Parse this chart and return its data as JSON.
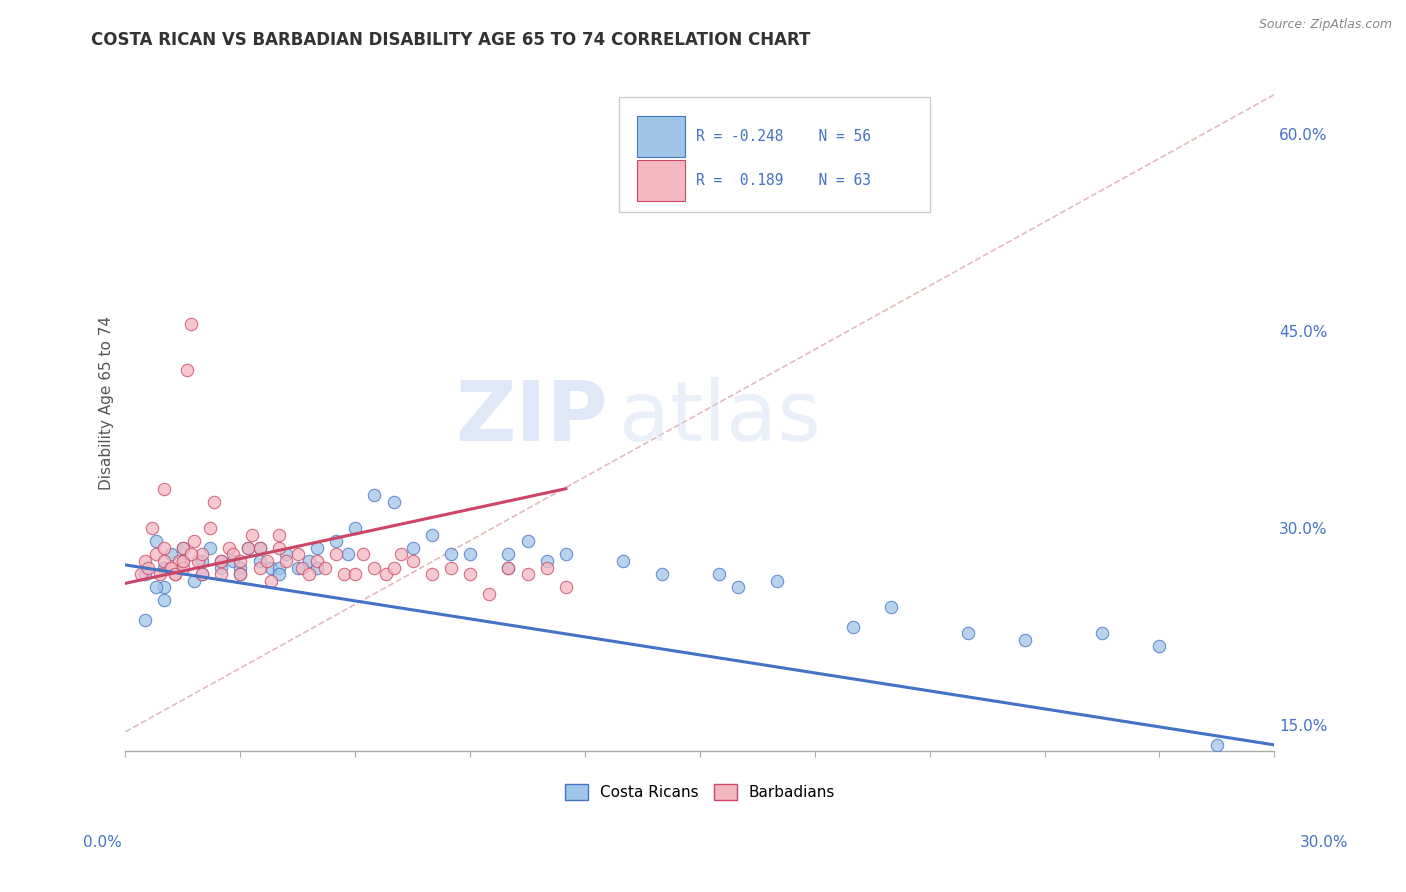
{
  "title": "COSTA RICAN VS BARBADIAN DISABILITY AGE 65 TO 74 CORRELATION CHART",
  "source": "Source: ZipAtlas.com",
  "ylabel": "Disability Age 65 to 74",
  "right_yticks": [
    "15.0%",
    "30.0%",
    "45.0%",
    "60.0%"
  ],
  "right_ytick_vals": [
    0.15,
    0.3,
    0.45,
    0.6
  ],
  "xmin": 0.0,
  "xmax": 0.3,
  "ymin": 0.13,
  "ymax": 0.66,
  "color_blue": "#9fc5e8",
  "color_pink": "#f4b8c1",
  "color_blue_dark": "#4472c4",
  "color_pink_dark": "#cc4466",
  "watermark_zip": "ZIP",
  "watermark_atlas": "atlas",
  "blue_scatter_x": [
    0.005,
    0.008,
    0.01,
    0.01,
    0.012,
    0.015,
    0.015,
    0.018,
    0.02,
    0.02,
    0.022,
    0.025,
    0.025,
    0.028,
    0.03,
    0.03,
    0.032,
    0.035,
    0.035,
    0.038,
    0.04,
    0.04,
    0.042,
    0.045,
    0.048,
    0.05,
    0.05,
    0.055,
    0.058,
    0.06,
    0.065,
    0.07,
    0.075,
    0.08,
    0.085,
    0.09,
    0.1,
    0.1,
    0.105,
    0.11,
    0.115,
    0.13,
    0.14,
    0.155,
    0.16,
    0.17,
    0.19,
    0.2,
    0.22,
    0.235,
    0.255,
    0.27,
    0.285,
    0.005,
    0.008,
    0.01
  ],
  "blue_scatter_y": [
    0.265,
    0.29,
    0.27,
    0.255,
    0.28,
    0.285,
    0.275,
    0.26,
    0.275,
    0.265,
    0.285,
    0.275,
    0.27,
    0.275,
    0.27,
    0.265,
    0.285,
    0.285,
    0.275,
    0.27,
    0.27,
    0.265,
    0.28,
    0.27,
    0.275,
    0.27,
    0.285,
    0.29,
    0.28,
    0.3,
    0.325,
    0.32,
    0.285,
    0.295,
    0.28,
    0.28,
    0.27,
    0.28,
    0.29,
    0.275,
    0.28,
    0.275,
    0.265,
    0.265,
    0.255,
    0.26,
    0.225,
    0.24,
    0.22,
    0.215,
    0.22,
    0.21,
    0.135,
    0.23,
    0.255,
    0.245
  ],
  "pink_scatter_x": [
    0.004,
    0.005,
    0.006,
    0.007,
    0.008,
    0.009,
    0.01,
    0.01,
    0.01,
    0.012,
    0.013,
    0.014,
    0.015,
    0.015,
    0.016,
    0.017,
    0.018,
    0.019,
    0.02,
    0.02,
    0.022,
    0.023,
    0.025,
    0.025,
    0.027,
    0.028,
    0.03,
    0.03,
    0.032,
    0.033,
    0.035,
    0.035,
    0.037,
    0.038,
    0.04,
    0.04,
    0.042,
    0.045,
    0.046,
    0.048,
    0.05,
    0.052,
    0.055,
    0.057,
    0.06,
    0.062,
    0.065,
    0.068,
    0.07,
    0.072,
    0.075,
    0.08,
    0.085,
    0.09,
    0.095,
    0.1,
    0.105,
    0.11,
    0.115,
    0.012,
    0.013,
    0.015,
    0.017
  ],
  "pink_scatter_y": [
    0.265,
    0.275,
    0.27,
    0.3,
    0.28,
    0.265,
    0.275,
    0.33,
    0.285,
    0.27,
    0.265,
    0.275,
    0.285,
    0.27,
    0.42,
    0.455,
    0.29,
    0.275,
    0.28,
    0.265,
    0.3,
    0.32,
    0.275,
    0.265,
    0.285,
    0.28,
    0.275,
    0.265,
    0.285,
    0.295,
    0.27,
    0.285,
    0.275,
    0.26,
    0.285,
    0.295,
    0.275,
    0.28,
    0.27,
    0.265,
    0.275,
    0.27,
    0.28,
    0.265,
    0.265,
    0.28,
    0.27,
    0.265,
    0.27,
    0.28,
    0.275,
    0.265,
    0.27,
    0.265,
    0.25,
    0.27,
    0.265,
    0.27,
    0.255,
    0.27,
    0.265,
    0.275,
    0.28
  ],
  "blue_trend_x": [
    0.0,
    0.3
  ],
  "blue_trend_y": [
    0.272,
    0.135
  ],
  "pink_trend_x": [
    0.0,
    0.115
  ],
  "pink_trend_y": [
    0.258,
    0.33
  ],
  "dash_trend_x": [
    0.0,
    0.3
  ],
  "dash_trend_y": [
    0.145,
    0.63
  ]
}
